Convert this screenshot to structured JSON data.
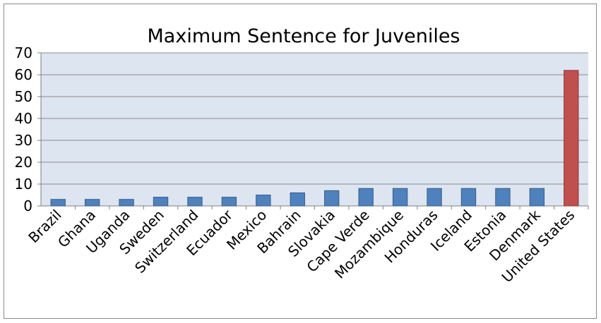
{
  "chart_data": {
    "type": "bar",
    "title": "Maximum Sentence for Juveniles",
    "xlabel": "",
    "ylabel": "",
    "categories": [
      "Brazil",
      "Ghana",
      "Uganda",
      "Sweden",
      "Switzerland",
      "Ecuador",
      "Mexico",
      "Bahrain",
      "Slovakia",
      "Cape Verde",
      "Mozambique",
      "Honduras",
      "Iceland",
      "Estonia",
      "Denmark",
      "United States"
    ],
    "values": [
      3,
      3,
      3,
      4,
      4,
      4,
      5,
      6,
      7,
      8,
      8,
      8,
      8,
      8,
      8,
      62
    ],
    "ylim": [
      0,
      70
    ],
    "yticks": [
      0,
      10,
      20,
      30,
      40,
      50,
      60,
      70
    ],
    "grid": true,
    "legend": "none",
    "colors": {
      "bar": "#4f81bd",
      "bar_border": "#385d8a",
      "highlight_bar": "#c0504d",
      "highlight_border": "#8c3836",
      "plot_background": "#dde5f1",
      "gridline": "#8c8c8c",
      "axis": "#808080"
    }
  }
}
